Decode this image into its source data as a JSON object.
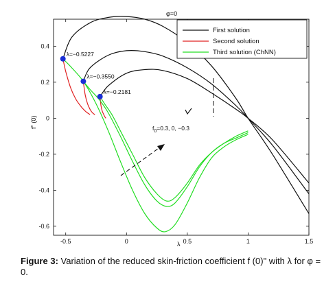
{
  "chart_data": {
    "type": "line",
    "title": "φ=0",
    "xlabel": "λ",
    "ylabel": "f'' (0)",
    "xlim": [
      -0.6,
      1.5
    ],
    "ylim": [
      -0.65,
      0.55
    ],
    "x_ticks": [
      "-0.5",
      "0",
      "0.5",
      "1",
      "1.5"
    ],
    "y_ticks": [
      "0.4",
      "0.2",
      "0",
      "-0.2",
      "-0.4",
      "-0.6"
    ],
    "grid": false,
    "legend_position": "top-right",
    "legend": [
      {
        "name": "First solution",
        "color": "#111111"
      },
      {
        "name": "Second  solution",
        "color": "#e02020"
      },
      {
        "name": "Third solution (ChNN)",
        "color": "#22dd22"
      }
    ],
    "critical_points": [
      {
        "label": "λ=−0.5227",
        "x": -0.5227,
        "y": 0.33
      },
      {
        "label": "λ=−0.3550",
        "x": -0.355,
        "y": 0.205
      },
      {
        "label": "λ=−0.2181",
        "x": -0.2181,
        "y": 0.12
      }
    ],
    "parameter_label": "f",
    "parameter_sub": "0",
    "parameter_values": "=0.3,  0, −0.3",
    "series": [
      {
        "name": "First solution",
        "group": 1,
        "color": "#111111",
        "x": [
          -0.5227,
          -0.45,
          -0.3,
          -0.15,
          0,
          0.15,
          0.3,
          0.5,
          0.7,
          0.9,
          1.0,
          1.2,
          1.5
        ],
        "y": [
          0.33,
          0.45,
          0.53,
          0.56,
          0.565,
          0.55,
          0.51,
          0.42,
          0.29,
          0.11,
          0.0,
          -0.2,
          -0.53
        ]
      },
      {
        "name": "First solution",
        "group": 2,
        "color": "#111111",
        "x": [
          -0.355,
          -0.3,
          -0.15,
          0,
          0.15,
          0.3,
          0.5,
          0.7,
          0.9,
          1.0,
          1.2,
          1.5
        ],
        "y": [
          0.205,
          0.28,
          0.35,
          0.375,
          0.37,
          0.345,
          0.28,
          0.19,
          0.07,
          0.0,
          -0.15,
          -0.42
        ]
      },
      {
        "name": "First solution",
        "group": 3,
        "color": "#111111",
        "x": [
          -0.2181,
          -0.15,
          0,
          0.15,
          0.3,
          0.5,
          0.7,
          0.9,
          1.0,
          1.2,
          1.5
        ],
        "y": [
          0.12,
          0.18,
          0.25,
          0.27,
          0.265,
          0.22,
          0.14,
          0.05,
          0.0,
          -0.12,
          -0.36
        ]
      },
      {
        "name": "Second  solution",
        "group": 1,
        "color": "#e02020",
        "x": [
          -0.5227,
          -0.5,
          -0.46,
          -0.42,
          -0.38,
          -0.34,
          -0.3
        ],
        "y": [
          0.33,
          0.26,
          0.17,
          0.11,
          0.07,
          0.04,
          0.02
        ]
      },
      {
        "name": "Second  solution",
        "group": 2,
        "color": "#e02020",
        "x": [
          -0.355,
          -0.34,
          -0.32,
          -0.3,
          -0.28,
          -0.26
        ],
        "y": [
          0.205,
          0.13,
          0.08,
          0.05,
          0.03,
          0.02
        ]
      },
      {
        "name": "Second  solution",
        "group": 3,
        "color": "#e02020",
        "x": [
          -0.2181,
          -0.21,
          -0.2,
          -0.19,
          -0.18,
          -0.17
        ],
        "y": [
          0.12,
          0.07,
          0.04,
          0.025,
          0.01,
          0.0
        ]
      },
      {
        "name": "Third solution (ChNN)",
        "group": 1,
        "color": "#22dd22",
        "x": [
          -0.5227,
          -0.45,
          -0.35,
          -0.25,
          -0.15,
          -0.05,
          0.05,
          0.15,
          0.25,
          0.32,
          0.4,
          0.5,
          0.6,
          0.7,
          0.8,
          0.9,
          1.0
        ],
        "y": [
          0.33,
          0.28,
          0.2,
          0.08,
          -0.07,
          -0.24,
          -0.4,
          -0.53,
          -0.61,
          -0.63,
          -0.59,
          -0.47,
          -0.33,
          -0.22,
          -0.16,
          -0.12,
          -0.09
        ]
      },
      {
        "name": "Third solution (ChNN)",
        "group": 2,
        "color": "#22dd22",
        "x": [
          -0.355,
          -0.3,
          -0.22,
          -0.15,
          -0.05,
          0.05,
          0.15,
          0.25,
          0.33,
          0.4,
          0.5,
          0.6,
          0.7,
          0.8,
          0.9,
          1.0
        ],
        "y": [
          0.205,
          0.16,
          0.1,
          0.03,
          -0.1,
          -0.24,
          -0.37,
          -0.46,
          -0.49,
          -0.47,
          -0.38,
          -0.27,
          -0.19,
          -0.14,
          -0.11,
          -0.08
        ]
      },
      {
        "name": "Third solution (ChNN)",
        "group": 3,
        "color": "#22dd22",
        "x": [
          -0.2181,
          -0.18,
          -0.12,
          -0.05,
          0.05,
          0.15,
          0.25,
          0.33,
          0.4,
          0.5,
          0.6,
          0.7,
          0.8,
          0.9,
          1.0
        ],
        "y": [
          0.12,
          0.08,
          0.02,
          -0.07,
          -0.2,
          -0.33,
          -0.42,
          -0.46,
          -0.44,
          -0.36,
          -0.26,
          -0.19,
          -0.14,
          -0.1,
          -0.07
        ]
      }
    ]
  },
  "caption": {
    "label": "Figure 3:",
    "text": " Variation of the reduced skin-friction coefficient f (0)\" with λ for φ = 0."
  }
}
